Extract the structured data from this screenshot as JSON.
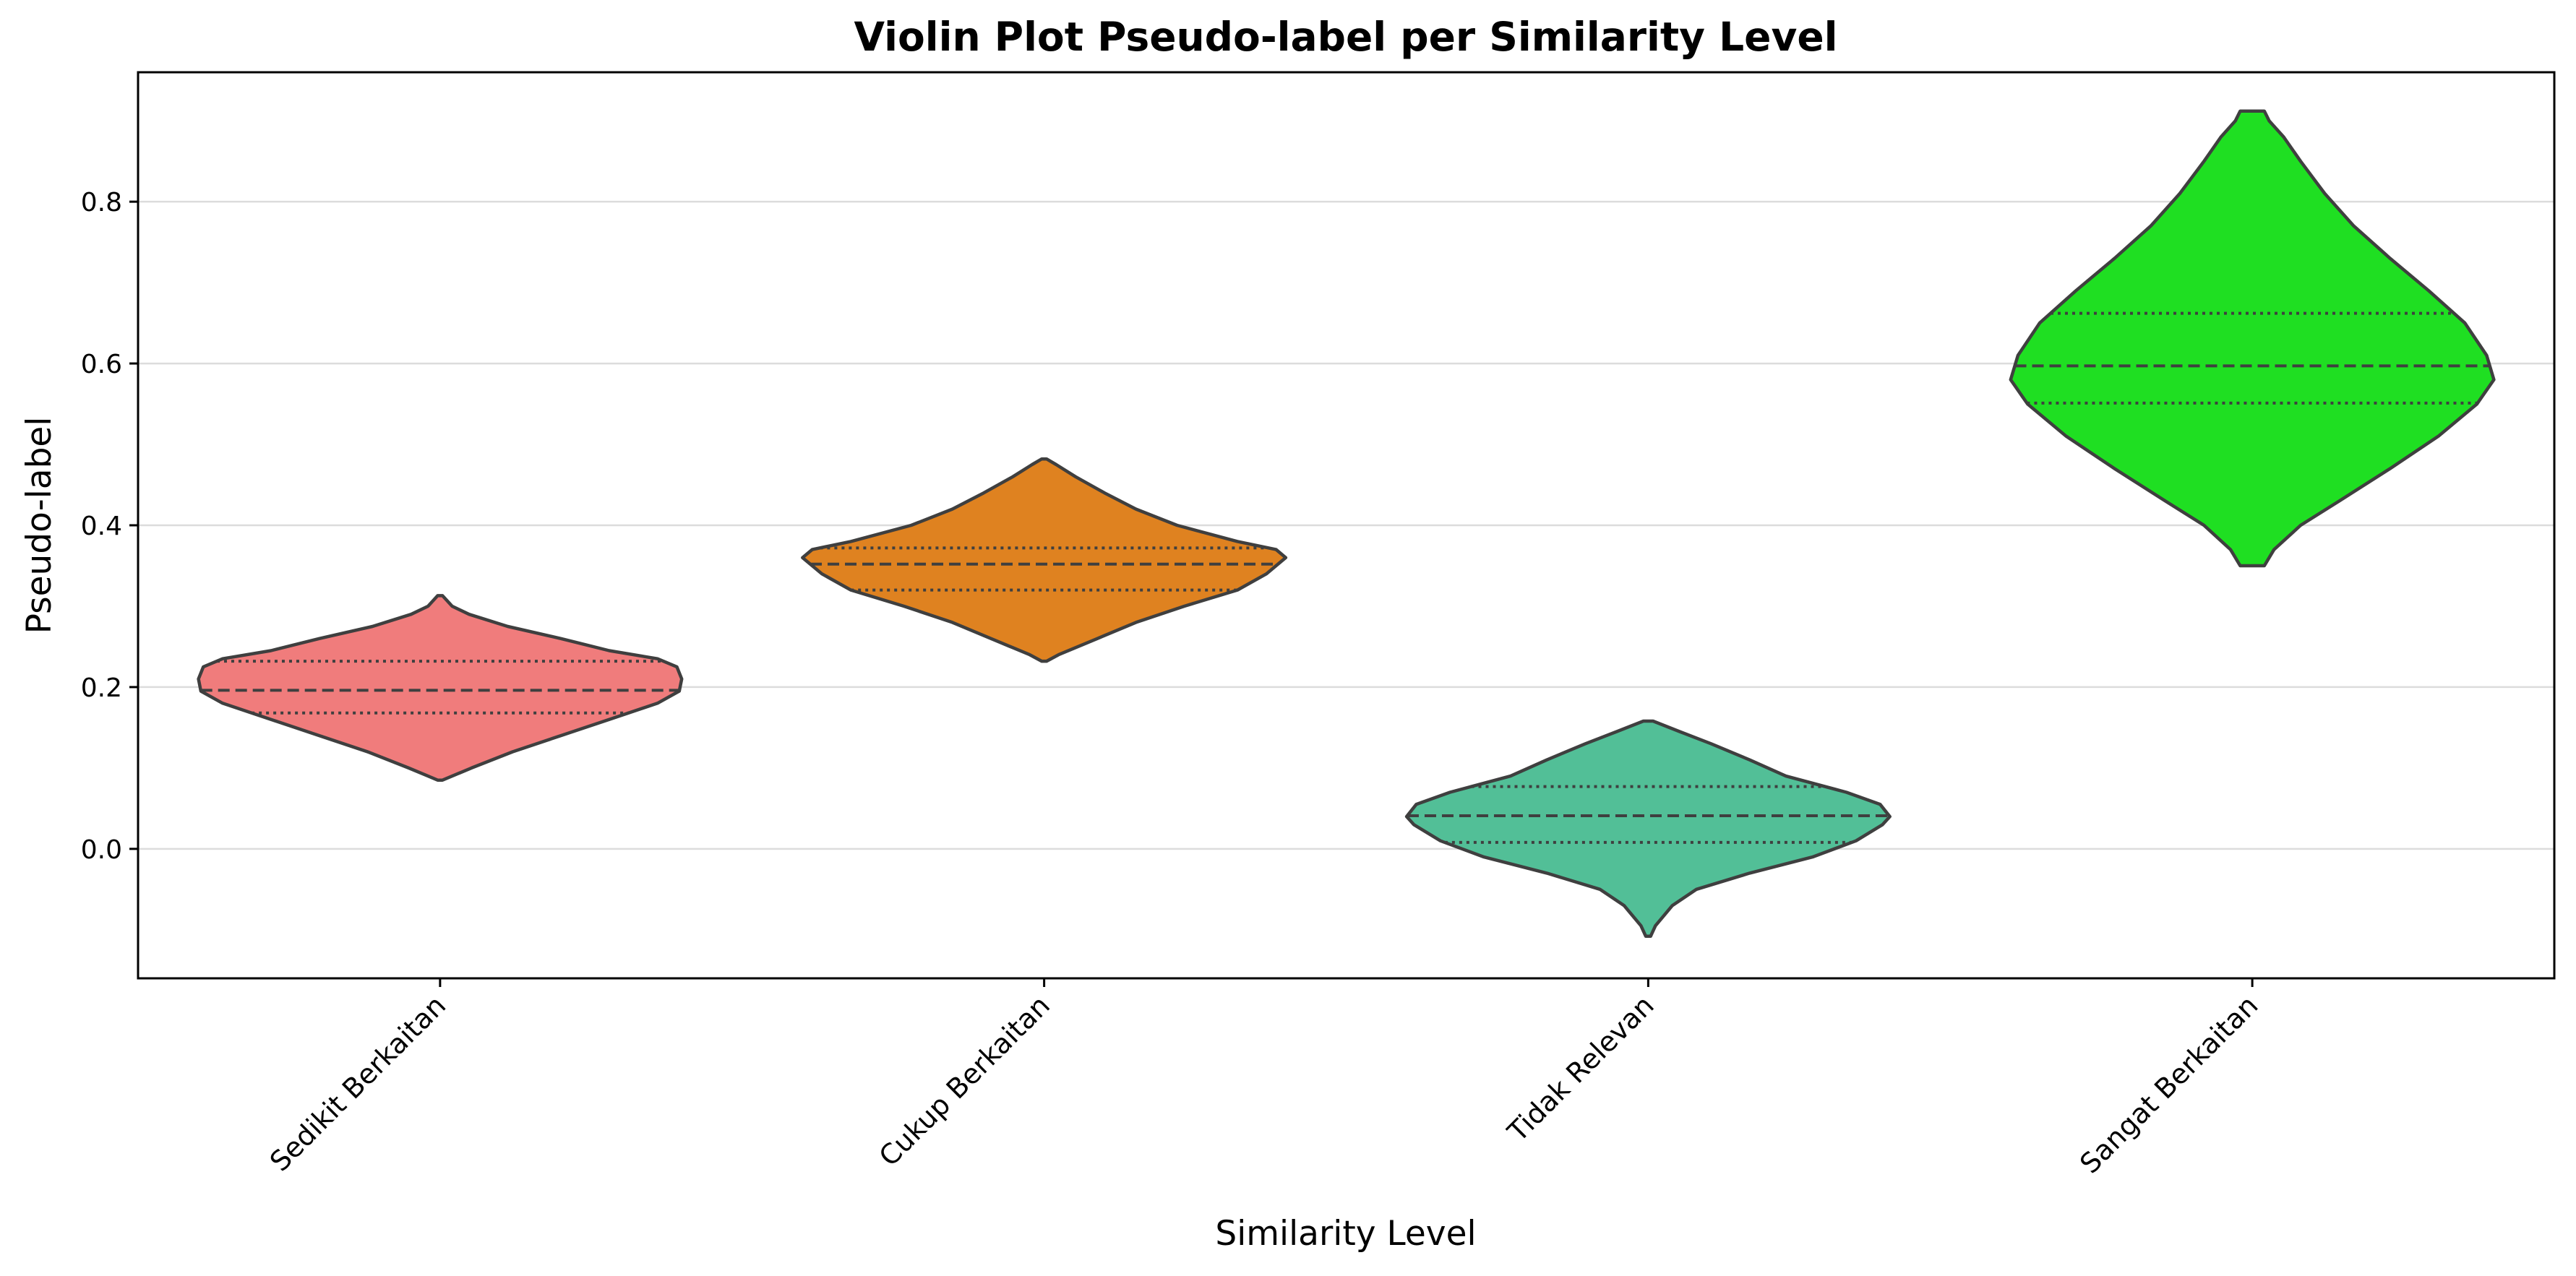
{
  "chart_data": {
    "type": "violin",
    "title": "Violin Plot Pseudo-label per Similarity Level",
    "xlabel": "Similarity Level",
    "ylabel": "Pseudo-label",
    "categories": [
      "Sedikit Berkaitan",
      "Cukup Berkaitan",
      "Tidak Relevan",
      "Sangat Berkaitan"
    ],
    "ylim": [
      -0.16,
      0.96
    ],
    "yticks": [
      0.0,
      0.2,
      0.4,
      0.6,
      0.8
    ],
    "ytick_labels": [
      "0.0",
      "0.2",
      "0.4",
      "0.6",
      "0.8"
    ],
    "grid": "horizontal",
    "colors": [
      "#f07c7c",
      "#df8220",
      "#52bf97",
      "#1fdf22"
    ],
    "outline_color": "#3f3f3f",
    "violins": [
      {
        "category": "Sedikit Berkaitan",
        "min": 0.085,
        "max": 0.313,
        "q1": 0.168,
        "median": 0.196,
        "q3": 0.232,
        "density": [
          [
            0.085,
            0.01
          ],
          [
            0.09,
            0.05
          ],
          [
            0.1,
            0.13
          ],
          [
            0.12,
            0.3
          ],
          [
            0.14,
            0.5
          ],
          [
            0.16,
            0.7
          ],
          [
            0.18,
            0.9
          ],
          [
            0.195,
            0.99
          ],
          [
            0.21,
            1.0
          ],
          [
            0.225,
            0.98
          ],
          [
            0.235,
            0.9
          ],
          [
            0.245,
            0.7
          ],
          [
            0.26,
            0.5
          ],
          [
            0.275,
            0.28
          ],
          [
            0.29,
            0.12
          ],
          [
            0.3,
            0.05
          ],
          [
            0.313,
            0.01
          ]
        ]
      },
      {
        "category": "Cukup Berkaitan",
        "min": 0.232,
        "max": 0.482,
        "q1": 0.32,
        "median": 0.352,
        "q3": 0.372,
        "density": [
          [
            0.232,
            0.01
          ],
          [
            0.24,
            0.06
          ],
          [
            0.26,
            0.22
          ],
          [
            0.28,
            0.38
          ],
          [
            0.3,
            0.58
          ],
          [
            0.32,
            0.8
          ],
          [
            0.34,
            0.92
          ],
          [
            0.355,
            0.98
          ],
          [
            0.36,
            1.0
          ],
          [
            0.37,
            0.96
          ],
          [
            0.38,
            0.8
          ],
          [
            0.4,
            0.55
          ],
          [
            0.42,
            0.38
          ],
          [
            0.44,
            0.25
          ],
          [
            0.46,
            0.13
          ],
          [
            0.475,
            0.05
          ],
          [
            0.482,
            0.01
          ]
        ]
      },
      {
        "category": "Tidak Relevan",
        "min": -0.108,
        "max": 0.158,
        "q1": 0.008,
        "median": 0.041,
        "q3": 0.077,
        "density": [
          [
            -0.108,
            0.01
          ],
          [
            -0.095,
            0.03
          ],
          [
            -0.07,
            0.1
          ],
          [
            -0.05,
            0.2
          ],
          [
            -0.03,
            0.42
          ],
          [
            -0.01,
            0.68
          ],
          [
            0.01,
            0.86
          ],
          [
            0.03,
            0.97
          ],
          [
            0.04,
            1.0
          ],
          [
            0.055,
            0.96
          ],
          [
            0.07,
            0.82
          ],
          [
            0.09,
            0.57
          ],
          [
            0.11,
            0.42
          ],
          [
            0.13,
            0.26
          ],
          [
            0.145,
            0.13
          ],
          [
            0.158,
            0.02
          ]
        ]
      },
      {
        "category": "Sangat Berkaitan",
        "min": 0.35,
        "max": 0.912,
        "q1": 0.551,
        "median": 0.597,
        "q3": 0.662,
        "density": [
          [
            0.35,
            0.05
          ],
          [
            0.37,
            0.09
          ],
          [
            0.4,
            0.2
          ],
          [
            0.43,
            0.36
          ],
          [
            0.47,
            0.57
          ],
          [
            0.51,
            0.77
          ],
          [
            0.55,
            0.93
          ],
          [
            0.58,
            1.0
          ],
          [
            0.61,
            0.97
          ],
          [
            0.65,
            0.88
          ],
          [
            0.69,
            0.73
          ],
          [
            0.73,
            0.57
          ],
          [
            0.77,
            0.42
          ],
          [
            0.81,
            0.3
          ],
          [
            0.85,
            0.2
          ],
          [
            0.88,
            0.13
          ],
          [
            0.9,
            0.07
          ],
          [
            0.912,
            0.05
          ]
        ]
      }
    ]
  }
}
